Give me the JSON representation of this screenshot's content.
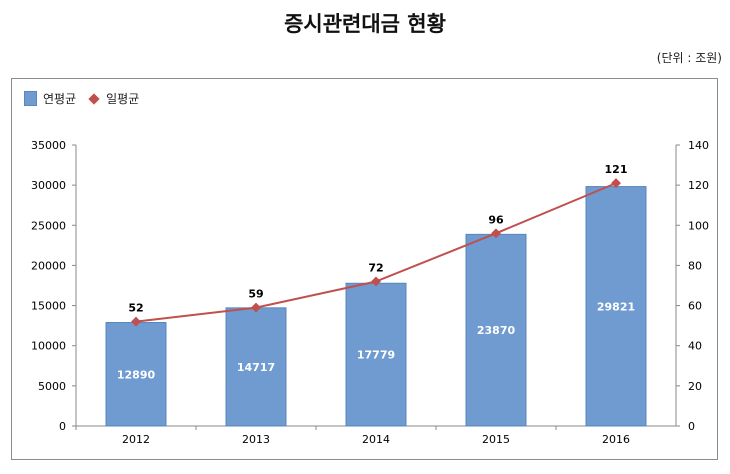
{
  "chart_data": {
    "type": "bar+line",
    "title": "증시관련대금 현황",
    "unit": "(단위 : 조원)",
    "categories": [
      "2012",
      "2013",
      "2014",
      "2015",
      "2016"
    ],
    "series": [
      {
        "name": "연평균",
        "type": "bar",
        "axis": "left",
        "values": [
          12890,
          14717,
          17779,
          23870,
          29821
        ],
        "color": "#6f9bd1"
      },
      {
        "name": "일평균",
        "type": "line",
        "axis": "right",
        "values": [
          52,
          59,
          72,
          96,
          121
        ],
        "color": "#c0504d"
      }
    ],
    "ylim_left": [
      0,
      35000
    ],
    "yticks_left": [
      0,
      5000,
      10000,
      15000,
      20000,
      25000,
      30000,
      35000
    ],
    "ylim_right": [
      0,
      140
    ],
    "yticks_right": [
      0,
      20,
      40,
      60,
      80,
      100,
      120,
      140
    ],
    "grid": false,
    "legend": "top-left"
  }
}
